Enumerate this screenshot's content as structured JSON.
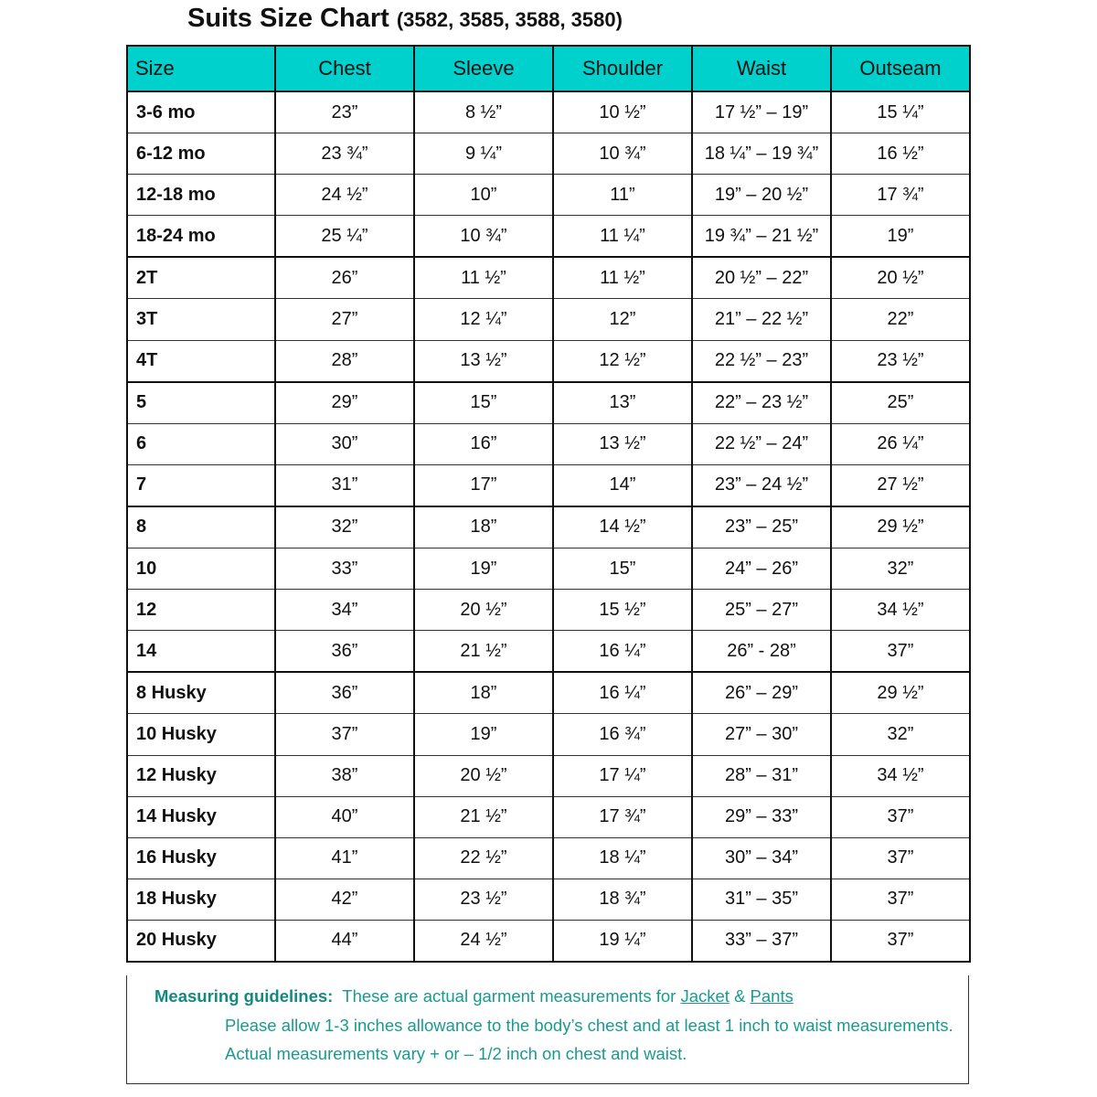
{
  "title": {
    "main": "Suits Size Chart",
    "sub": "(3582, 3585, 3588, 3580)"
  },
  "headers": [
    "Size",
    "Chest",
    "Sleeve",
    "Shoulder",
    "Waist",
    "Outseam"
  ],
  "header_color": "#00d1cc",
  "rows": [
    [
      "3-6 mo",
      "23”",
      "8 ½”",
      "10 ½”",
      "17 ½” – 19”",
      "15 ¼”"
    ],
    [
      "6-12 mo",
      "23 ¾”",
      "9 ¼”",
      "10 ¾”",
      "18 ¼” – 19 ¾”",
      "16 ½”"
    ],
    [
      "12-18 mo",
      "24 ½”",
      "10”",
      "11”",
      "19” – 20 ½”",
      "17 ¾”"
    ],
    [
      "18-24 mo",
      "25 ¼”",
      "10 ¾”",
      "11 ¼”",
      "19 ¾” – 21 ½”",
      "19”"
    ],
    [
      "2T",
      "26”",
      "11 ½”",
      "11 ½”",
      "20 ½” – 22”",
      "20 ½”"
    ],
    [
      "3T",
      "27”",
      "12 ¼”",
      "12”",
      "21” – 22 ½”",
      "22”"
    ],
    [
      "4T",
      "28”",
      "13 ½”",
      "12 ½”",
      "22 ½” – 23”",
      "23 ½”"
    ],
    [
      "5",
      "29”",
      "15”",
      "13”",
      "22” – 23 ½”",
      "25”"
    ],
    [
      "6",
      "30”",
      "16”",
      "13 ½”",
      "22 ½” – 24”",
      "26 ¼”"
    ],
    [
      "7",
      "31”",
      "17”",
      "14”",
      "23” – 24 ½”",
      "27 ½”"
    ],
    [
      "8",
      "32”",
      "18”",
      "14 ½”",
      "23” – 25”",
      "29 ½”"
    ],
    [
      "10",
      "33”",
      "19”",
      "15”",
      "24” – 26”",
      "32”"
    ],
    [
      "12",
      "34”",
      "20 ½”",
      "15 ½”",
      "25” – 27”",
      "34 ½”"
    ],
    [
      "14",
      "36”",
      "21 ½”",
      "16 ¼”",
      "26” - 28”",
      "37”"
    ],
    [
      "8 Husky",
      "36”",
      "18”",
      "16 ¼”",
      "26” – 29”",
      "29 ½”"
    ],
    [
      "10 Husky",
      "37”",
      "19”",
      "16 ¾”",
      "27” – 30”",
      "32”"
    ],
    [
      "12 Husky",
      "38”",
      "20 ½”",
      "17 ¼”",
      "28” – 31”",
      "34 ½”"
    ],
    [
      "14 Husky",
      "40”",
      "21 ½”",
      "17 ¾”",
      "29” – 33”",
      "37”"
    ],
    [
      "16 Husky",
      "41”",
      "22 ½”",
      "18 ¼”",
      "30” – 34”",
      "37”"
    ],
    [
      "18 Husky",
      "42”",
      "23 ½”",
      "18 ¾”",
      "31” – 35”",
      "37”"
    ],
    [
      "20 Husky",
      "44”",
      "24 ½”",
      "19 ¼”",
      "33” – 37”",
      "37”"
    ]
  ],
  "notes": {
    "label": "Measuring guidelines:",
    "line1": "These are actual garment measurements for",
    "link_jacket": "Jacket",
    "amp": "&",
    "link_pants": "Pants",
    "line2": "Please allow 1-3 inches allowance to the body’s chest and at least 1 inch to waist measurements.",
    "line3": "Actual measurements vary + or – 1/2 inch on chest and waist.",
    "color": "#1a9a8f"
  }
}
